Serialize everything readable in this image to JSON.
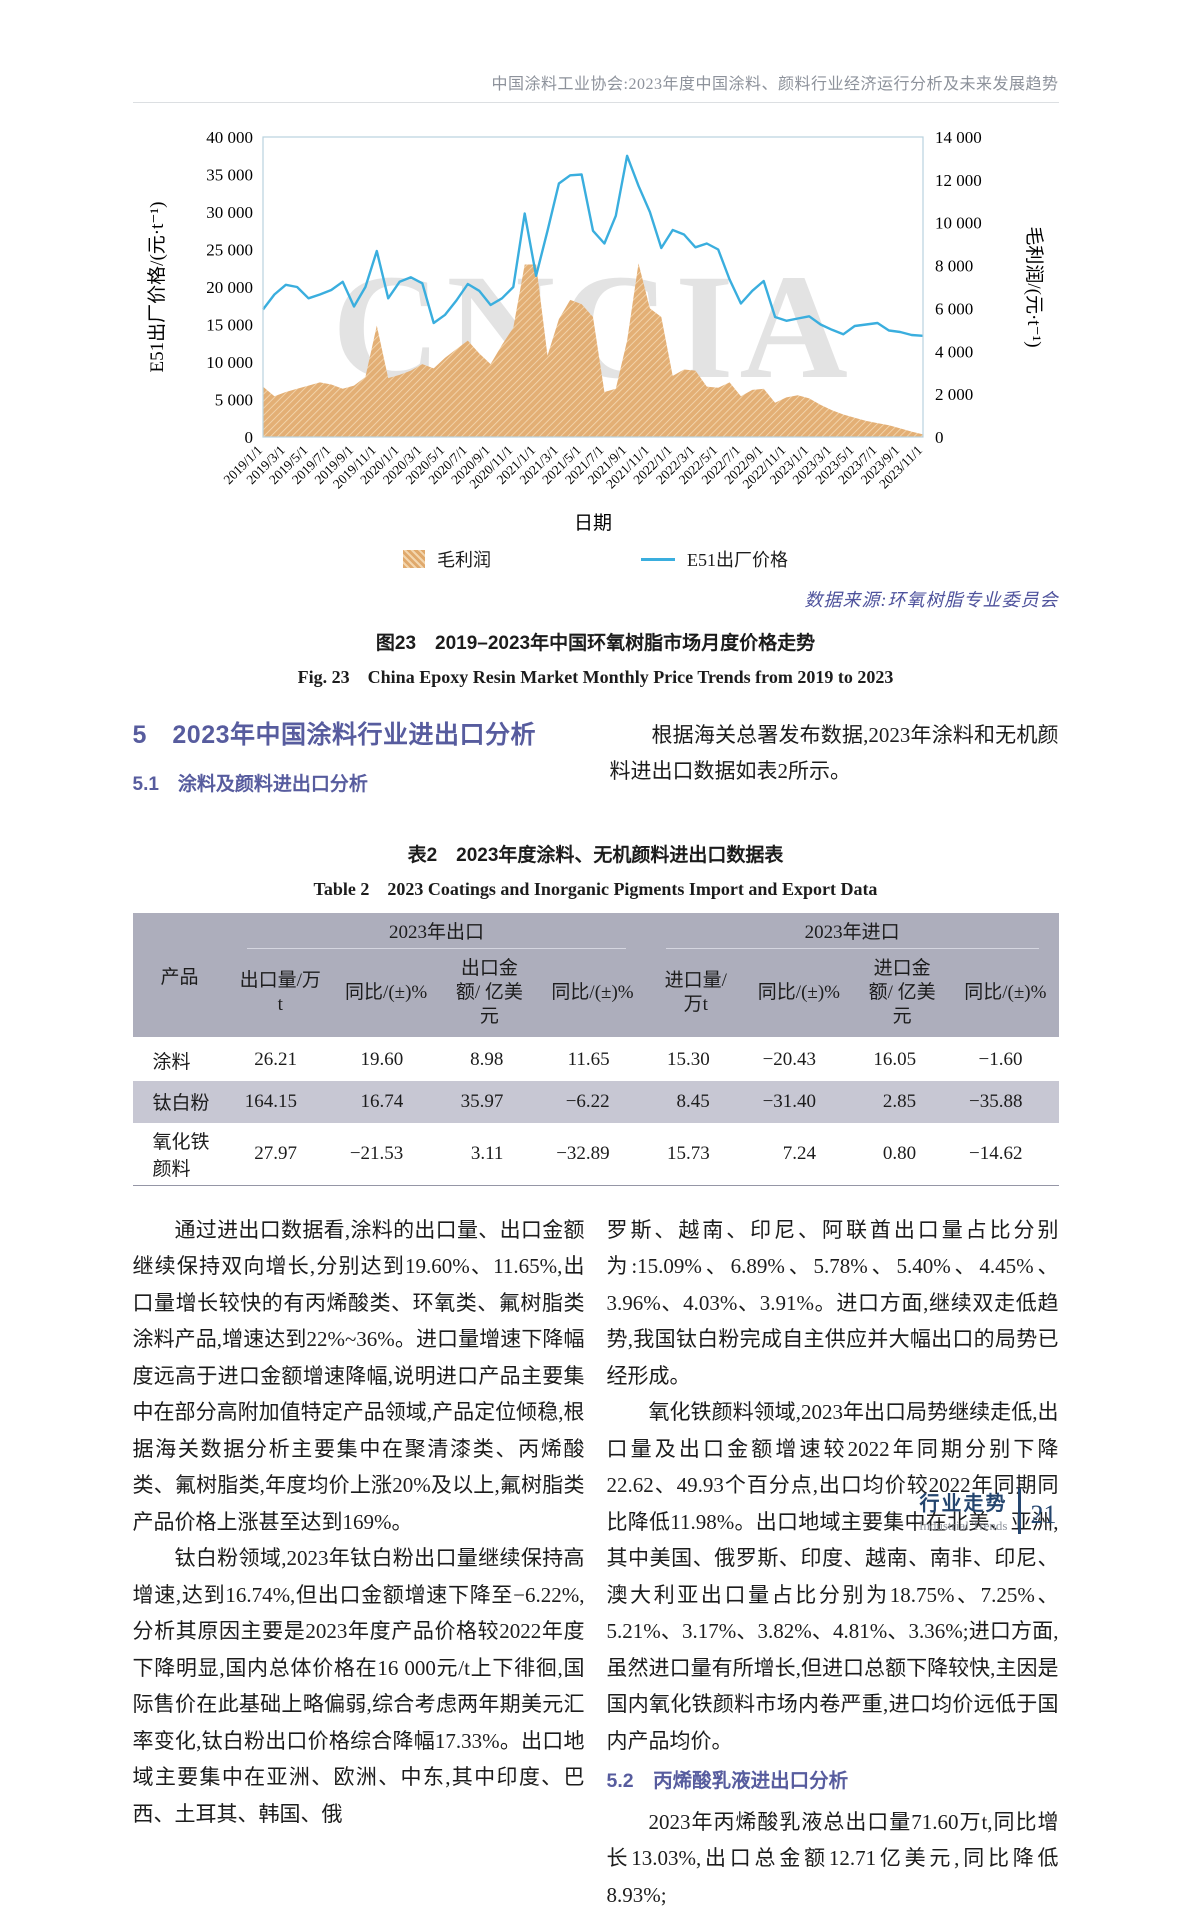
{
  "header": {
    "running_title": "中国涂料工业协会:2023年度中国涂料、颜料行业经济运行分析及未来发展趋势"
  },
  "chart_data": {
    "type": "line+area",
    "title": "",
    "xlabel": "日期",
    "ylabel_left": "E51出厂价格/(元·t⁻¹)",
    "ylabel_right": "毛利润/(元·t⁻¹)",
    "watermark": "CNCIA",
    "ylim_left": [
      0,
      40000
    ],
    "ylim_right": [
      0,
      14000
    ],
    "left_ticks": [
      "0",
      "5 000",
      "10 000",
      "15 000",
      "20 000",
      "25 000",
      "30 000",
      "35 000",
      "40 000"
    ],
    "right_ticks": [
      "0",
      "2 000",
      "4 000",
      "6 000",
      "8 000",
      "10 000",
      "12 000",
      "14 000"
    ],
    "x_tick_labels": [
      "2019/1/1",
      "2019/3/1",
      "2019/5/1",
      "2019/7/1",
      "2019/9/1",
      "2019/11/1",
      "2020/1/1",
      "2020/3/1",
      "2020/5/1",
      "2020/7/1",
      "2020/9/1",
      "2020/11/1",
      "2021/1/1",
      "2021/3/1",
      "2021/5/1",
      "2021/7/1",
      "2021/9/1",
      "2021/11/1",
      "2022/1/1",
      "2022/3/1",
      "2022/5/1",
      "2022/7/1",
      "2022/9/1",
      "2022/11/1",
      "2023/1/1",
      "2023/3/1",
      "2023/5/1",
      "2023/7/1",
      "2023/9/1",
      "2023/11/1"
    ],
    "series": [
      {
        "name": "毛利润",
        "axis": "right",
        "style": "area-hatch",
        "color": "#e0a96c",
        "values": [
          2350,
          1900,
          2100,
          2250,
          2400,
          2550,
          2450,
          2250,
          2400,
          2800,
          5200,
          2750,
          2900,
          3100,
          3400,
          3200,
          3700,
          4100,
          4500,
          3900,
          3400,
          4300,
          5100,
          8050,
          8050,
          3800,
          5500,
          6400,
          6200,
          5600,
          2100,
          2250,
          4500,
          8100,
          6000,
          5600,
          2850,
          3150,
          3100,
          2350,
          2300,
          2550,
          1900,
          2200,
          2250,
          1600,
          1850,
          1950,
          1800,
          1500,
          1250,
          1050,
          900,
          750,
          650,
          550,
          400,
          250,
          120
        ]
      },
      {
        "name": "E51出厂价格",
        "axis": "left",
        "style": "line",
        "color": "#3aaede",
        "values": [
          17000,
          19000,
          20300,
          20000,
          18500,
          19000,
          19600,
          20700,
          17400,
          20000,
          24800,
          18500,
          20700,
          21300,
          20500,
          15200,
          16300,
          18200,
          20400,
          19500,
          17600,
          18500,
          20000,
          29800,
          21500,
          27500,
          33800,
          34900,
          35000,
          27500,
          25800,
          29500,
          37500,
          33500,
          30000,
          25200,
          27600,
          27000,
          25300,
          25800,
          25000,
          21000,
          17800,
          19500,
          20800,
          16000,
          15500,
          15800,
          16100,
          15000,
          14300,
          13700,
          14800,
          15000,
          15200,
          14200,
          14000,
          13600,
          13500
        ]
      }
    ],
    "legend": [
      "毛利润",
      "E51出厂价格"
    ]
  },
  "figure": {
    "source": "数据来源:环氧树脂专业委员会",
    "caption_zh": "图23　2019–2023年中国环氧树脂市场月度价格走势",
    "caption_en": "Fig. 23　China Epoxy Resin Market Monthly Price Trends from 2019 to 2023"
  },
  "section": {
    "h5": "5　2023年中国涂料行业进出口分析",
    "h51": "5.1　涂料及颜料进出口分析",
    "intro": "根据海关总署发布数据,2023年涂料和无机颜料进出口数据如表2所示。"
  },
  "table": {
    "title_zh": "表2　2023年度涂料、无机颜料进出口数据表",
    "title_en": "Table 2　2023 Coatings and Inorganic Pigments Import and Export Data",
    "col_product": "产品",
    "groups": [
      "2023年出口",
      "2023年进口"
    ],
    "subheaders": [
      "出口量/万t",
      "同比/(±)%",
      "出口金额/ 亿美元",
      "同比/(±)%",
      "进口量/万t",
      "同比/(±)%",
      "进口金额/ 亿美元",
      "同比/(±)%"
    ],
    "rows": [
      {
        "product": "涂料",
        "values": [
          "26.21",
          "19.60",
          "8.98",
          "11.65",
          "15.30",
          "−20.43",
          "16.05",
          "−1.60"
        ]
      },
      {
        "product": "钛白粉",
        "values": [
          "164.15",
          "16.74",
          "35.97",
          "−6.22",
          "8.45",
          "−31.40",
          "2.85",
          "−35.88"
        ]
      },
      {
        "product": "氧化铁颜料",
        "values": [
          "27.97",
          "−21.53",
          "3.11",
          "−32.89",
          "15.73",
          "7.24",
          "0.80",
          "−14.62"
        ]
      }
    ]
  },
  "body": {
    "p1": "通过进出口数据看,涂料的出口量、出口金额继续保持双向增长,分别达到19.60%、11.65%,出口量增长较快的有丙烯酸类、环氧类、氟树脂类涂料产品,增速达到22%~36%。进口量增速下降幅度远高于进口金额增速降幅,说明进口产品主要集中在部分高附加值特定产品领域,产品定位倾稳,根据海关数据分析主要集中在聚清漆类、丙烯酸类、氟树脂类,年度均价上涨20%及以上,氟树脂类产品价格上涨甚至达到169%。",
    "p2": "钛白粉领域,2023年钛白粉出口量继续保持高增速,达到16.74%,但出口金额增速下降至−6.22%,分析其原因主要是2023年度产品价格较2022年度下降明显,国内总体价格在16 000元/t上下徘徊,国际售价在此基础上略偏弱,综合考虑两年期美元汇率变化,钛白粉出口价格综合降幅17.33%。出口地域主要集中在亚洲、欧洲、中东,其中印度、巴西、土耳其、韩国、俄",
    "p3": "罗斯、越南、印尼、阿联酋出口量占比分别为:15.09%、6.89%、5.78%、5.40%、4.45%、3.96%、4.03%、3.91%。进口方面,继续双走低趋势,我国钛白粉完成自主供应并大幅出口的局势已经形成。",
    "p4": "氧化铁颜料领域,2023年出口局势继续走低,出口量及出口金额增速较2022年同期分别下降22.62、49.93个百分点,出口均价较2022年同期同比降低11.98%。出口地域主要集中在北美、亚洲,其中美国、俄罗斯、印度、越南、南非、印尼、澳大利亚出口量占比分别为18.75%、7.25%、5.21%、3.17%、3.82%、4.81%、3.36%;进口方面,虽然进口量有所增长,但进口总额下降较快,主因是国内氧化铁颜料市场内卷严重,进口均价远低于国内产品均价。",
    "h52": "5.2　丙烯酸乳液进出口分析",
    "p5": "2023年丙烯酸乳液总出口量71.60万t,同比增长13.03%,出口总金额12.71亿美元,同比降低8.93%;"
  },
  "footer": {
    "zh": "行业走势",
    "en": "Industrial Trends",
    "page": "21"
  }
}
